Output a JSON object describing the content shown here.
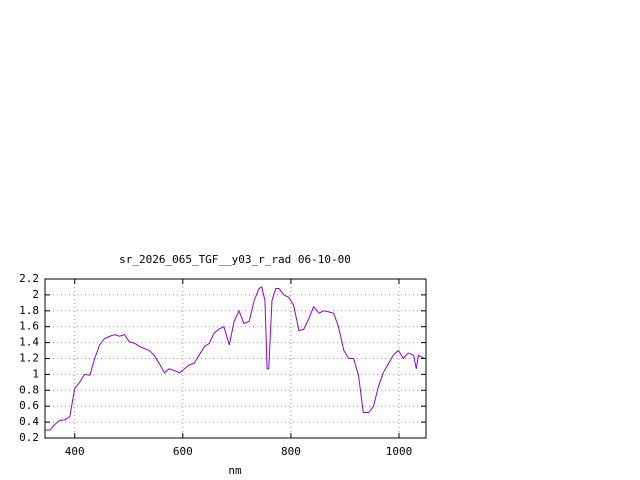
{
  "chart_data": {
    "type": "line",
    "title": "sr_2026_065_TGF__y03_r_rad 06-10-00",
    "x_label": "nm",
    "x": [
      345,
      354,
      363,
      372,
      382,
      391,
      396,
      400,
      409,
      418,
      428,
      437,
      446,
      455,
      465,
      474,
      483,
      492,
      501,
      511,
      520,
      538,
      547,
      557,
      566,
      575,
      584,
      594,
      603,
      612,
      621,
      630,
      640,
      649,
      658,
      667,
      676,
      686,
      695,
      704,
      713,
      723,
      732,
      741,
      746,
      752,
      756,
      759,
      765,
      772,
      778,
      787,
      796,
      805,
      815,
      824,
      833,
      842,
      852,
      861,
      879,
      888,
      898,
      907,
      916,
      925,
      934,
      944,
      953,
      962,
      971,
      981,
      990,
      999,
      1008,
      1017,
      1027,
      1032,
      1036,
      1047
    ],
    "series": [
      {
        "name": "sr_2026_065_TGF__y03_r_rad",
        "color": "#9400d3",
        "values": [
          0.3,
          0.3,
          0.37,
          0.42,
          0.43,
          0.47,
          0.67,
          0.82,
          0.9,
          1.0,
          0.99,
          1.2,
          1.37,
          1.45,
          1.48,
          1.5,
          1.48,
          1.5,
          1.41,
          1.39,
          1.35,
          1.3,
          1.24,
          1.13,
          1.02,
          1.07,
          1.05,
          1.02,
          1.07,
          1.12,
          1.14,
          1.24,
          1.35,
          1.39,
          1.52,
          1.57,
          1.6,
          1.37,
          1.67,
          1.8,
          1.64,
          1.67,
          1.93,
          2.08,
          2.1,
          1.93,
          1.07,
          1.07,
          1.93,
          2.08,
          2.08,
          2.0,
          1.97,
          1.87,
          1.55,
          1.57,
          1.7,
          1.85,
          1.77,
          1.8,
          1.77,
          1.6,
          1.3,
          1.2,
          1.2,
          0.99,
          0.52,
          0.52,
          0.6,
          0.85,
          1.02,
          1.14,
          1.25,
          1.3,
          1.2,
          1.27,
          1.24,
          1.07,
          1.24,
          1.2
        ]
      }
    ],
    "xlim": [
      345,
      1050
    ],
    "ylim": [
      0.2,
      2.2
    ],
    "xticks": [
      400,
      600,
      800,
      1000
    ],
    "yticks": [
      0.2,
      0.4,
      0.6,
      0.8,
      1,
      1.2,
      1.4,
      1.6,
      1.8,
      2,
      2.2
    ],
    "grid": true
  }
}
